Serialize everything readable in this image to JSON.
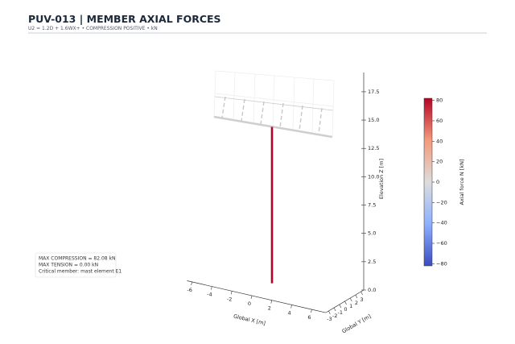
{
  "chart_data": {
    "type": "structure3d",
    "title": "PUV-013 | MEMBER AXIAL FORCES",
    "subtitle": "U2 = 1.2D + 1.6WX+ • COMPRESSION POSITIVE • kN",
    "xlabel": "Global X [m]",
    "ylabel": "Global Y [m]",
    "zlabel": "Elevation Z [m]",
    "xlim": [
      -6.5,
      7.4
    ],
    "xticks": [
      -6,
      -4,
      -2,
      0,
      2,
      4,
      6
    ],
    "ylim": [
      -3.5,
      3.5
    ],
    "yticks": [
      -3,
      -2,
      -1,
      0,
      1,
      2,
      3
    ],
    "zlim": [
      0,
      19.2
    ],
    "zticks": [
      {
        "value": 0,
        "label": "0.0"
      },
      2.5,
      {
        "value": 5,
        "label": "5.0"
      },
      7.5,
      {
        "value": 10,
        "label": "10.0"
      },
      12.5,
      {
        "value": 15,
        "label": "15.0"
      },
      17.5
    ],
    "mast": {
      "force": 82.08,
      "z": [
        0.6,
        14.4
      ],
      "color": "#b40426"
    },
    "colorbar": {
      "label": "Axial force N [kN]",
      "lim": [
        -82.08,
        82.08
      ],
      "ticks": [
        {
          "value": -80,
          "label": "−80"
        },
        {
          "value": -60,
          "label": "−60"
        },
        {
          "value": -40,
          "label": "−40"
        },
        {
          "value": -20,
          "label": "−20"
        },
        0,
        20,
        40,
        60,
        80
      ]
    },
    "annotations": [
      "MAX COMPRESSION = 82.08 kN",
      "MAX TENSION = 0.00 kN",
      "Critical member: mast element E1"
    ]
  }
}
